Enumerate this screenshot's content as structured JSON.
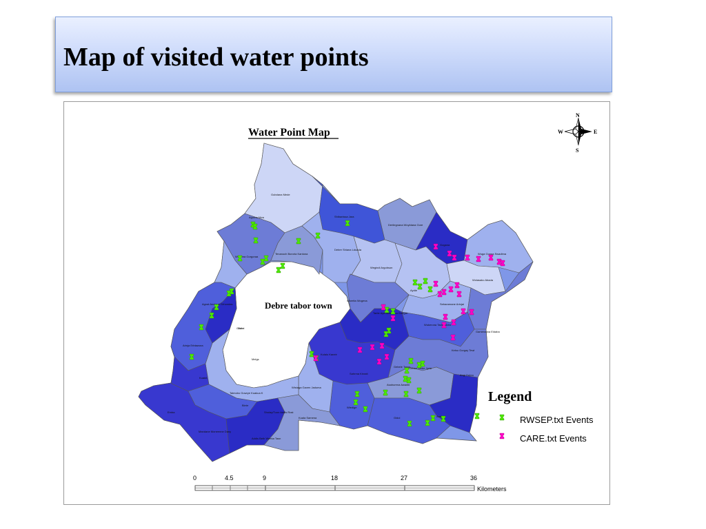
{
  "slide": {
    "title": "Map of visited water points"
  },
  "map": {
    "title": "Water Point Map",
    "town_label": "Debre tabor town",
    "compass": {
      "n": "N",
      "s": "S",
      "e": "E",
      "w": "W"
    },
    "kebeles": [
      "Gubdana Mede",
      "Agoma Niva",
      "Shibanissa Jara",
      "Derilegnana Woyldana Gore",
      "Tenanoch Bororia Kantona",
      "Debre Shiana Ldoada",
      "Welsima Gorgoraa",
      "Wegindi Argobson",
      "Gogana",
      "Wuga Gonga Swadima",
      "Aydie",
      "Wolasako Abada",
      "Sebaramane Arinjai",
      "Gishei",
      "Agnat Anajaye Grhondas",
      "Tarite Ayedawbonsa Gobgai",
      "Woreita Wogena",
      "Wukerona Tado Kildro",
      "Gameranna Eldaba",
      "Arinja Erbtawora",
      "Gulo",
      "Melgs",
      "Kuakit",
      "Kulalu Kaneir",
      "Gebele Tomo",
      "Gebao Sedie Jyria",
      "Kelso Gorgay Tewi",
      "Angi Dubro",
      "Sahrma Kinrati",
      "Wistaga Gaven Jaduma",
      "Talmobo Gowrye Kuakua K",
      "Asahurena Awanbi",
      "Wiedige",
      "Birrie",
      "Gidoi",
      "Andoel",
      "Shulay/Tuon Addis Rost",
      "Kuala Samena",
      "Emba",
      "Mandane Moneenne Dany",
      "Addis Beth Weeka Tasn"
    ],
    "legend": {
      "title": "Legend",
      "items": [
        {
          "label": "RWSEP.txt Events",
          "color": "#4ce600"
        },
        {
          "label": "CARE.txt Events",
          "color": "#ff00c5"
        }
      ]
    },
    "scale": {
      "ticks": [
        "0",
        "4.5",
        "9",
        "18",
        "27",
        "36"
      ],
      "unit": "Kilometers"
    }
  },
  "colors": {
    "title_bar": "#cfdcfb",
    "region_shades": [
      "#cdd6f6",
      "#9fb1ee",
      "#7f97e8",
      "#6d7cd6",
      "#4f5fdb",
      "#3838cf",
      "#2a2cc5",
      "#8a9ad8"
    ]
  }
}
